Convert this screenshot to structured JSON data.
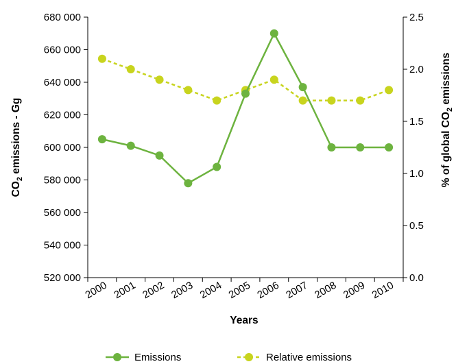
{
  "chart_data": {
    "type": "line",
    "categories": [
      "2000",
      "2001",
      "2002",
      "2003",
      "2004",
      "2005",
      "2006",
      "2007",
      "2008",
      "2009",
      "2010"
    ],
    "xlabel": "Years",
    "ylabel": {
      "main": "CO",
      "sub": "2",
      "rest": " emissions - Gg"
    },
    "y2label": {
      "main": "% of global CO",
      "sub": "2",
      "rest": " emissions"
    },
    "ylim": [
      520000,
      680000
    ],
    "y_ticks": [
      520000,
      540000,
      560000,
      580000,
      600000,
      620000,
      640000,
      660000,
      680000
    ],
    "y_tick_labels": [
      "520 000",
      "540 000",
      "560 000",
      "580 000",
      "600 000",
      "620 000",
      "640 000",
      "660 000",
      "680 000"
    ],
    "y2lim": [
      0,
      2.5
    ],
    "y2_ticks": [
      0,
      0.5,
      1.0,
      1.5,
      2.0,
      2.5
    ],
    "y2_tick_labels": [
      "0.0",
      "0.5",
      "1.0",
      "1.5",
      "2.0",
      "2.5"
    ],
    "grid": false,
    "legend_position": "bottom",
    "series": [
      {
        "name": "Emissions",
        "axis": "left",
        "color": "#6db33f",
        "dashed": false,
        "values": [
          605000,
          601000,
          595000,
          578000,
          588000,
          633000,
          670000,
          637000,
          600000,
          600000,
          600000
        ]
      },
      {
        "name": "Relative emissions",
        "axis": "right",
        "color": "#c8d41e",
        "dashed": true,
        "values": [
          2.1,
          2.0,
          1.9,
          1.8,
          1.7,
          1.8,
          1.9,
          1.7,
          1.7,
          1.7,
          1.8
        ]
      }
    ]
  }
}
